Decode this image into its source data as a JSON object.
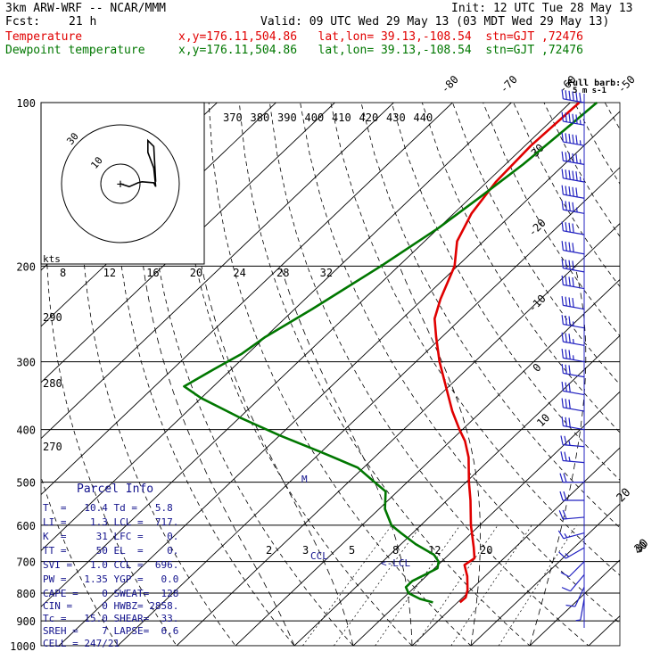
{
  "header": {
    "model": "3km ARW-WRF -- NCAR/MMM",
    "init": "Init: 12 UTC Tue 28 May 13",
    "fcst_label": "Fcst:",
    "fcst_hours": "21 h",
    "valid": "Valid: 09 UTC Wed 29 May 13 (03 MDT Wed 29 May 13)",
    "temp_label": "Temperature",
    "dewp_label": "Dewpoint temperature",
    "temp_loc": "x,y=176.11,504.86   lat,lon= 39.13,-108.54  stn=GJT ,72476",
    "dewp_loc": "x,y=176.11,504.86   lat,lon= 39.13,-108.54  stn=GJT ,72476"
  },
  "colors": {
    "temperature": "#e00000",
    "dewpoint": "#007700",
    "header_red": "#e00000",
    "header_green": "#007700",
    "params": "#12128c",
    "barb": "#2020c0"
  },
  "barb_legend": {
    "line1": "Full barb:",
    "line2": "5 m s-1"
  },
  "hodograph": {
    "units": "kts",
    "ring_labels": [
      "10",
      "30"
    ],
    "bottom_ticks": [
      "8",
      "12",
      "16",
      "20",
      "24",
      "28",
      "32"
    ],
    "points": [
      [
        0.0,
        0.0
      ],
      [
        4.5,
        -1.5
      ],
      [
        9,
        0.5
      ],
      [
        11,
        1
      ],
      [
        17,
        0.5
      ],
      [
        18,
        -1.5
      ],
      [
        17,
        8
      ],
      [
        14,
        16
      ],
      [
        14,
        22
      ],
      [
        17,
        19
      ],
      [
        18,
        1
      ]
    ]
  },
  "theta_e_labels": [
    "370",
    "380",
    "390",
    "400",
    "410",
    "420",
    "430",
    "440"
  ],
  "theta_side_labels": [
    "290",
    "280",
    "270"
  ],
  "mixing_ratio_labels": [
    "2",
    "3",
    "5",
    "8",
    "12",
    "20"
  ],
  "level_marks": {
    "ccl": "CCL",
    "lcl": "<-LCL",
    "m": "M"
  },
  "parcel_info": {
    "title": "Parcel Info",
    "rows": [
      "T  =   10.4 Td =   5.8",
      "LI =    1.3 LCL =  717.",
      "K  =     31 LFC =    0.",
      "TT =     50 EL  =    0.",
      "SVI =   1.0 CCL =  696.",
      "PW =   1.35 YGP =   0.0",
      "CAPE =    0 SWEAT=  128",
      "CIN =     0 HWBZ= 2858.",
      "Tc =   15.0 SHEAR=  33.",
      "SREH =    7 LAPSE=  6.6",
      "CELL = 247/21"
    ]
  },
  "chart_data": {
    "type": "line",
    "title": "",
    "xlabel": "",
    "ylabel": "",
    "pressure_axis_labels": [
      "100",
      "200",
      "300",
      "400",
      "500",
      "600",
      "700",
      "800",
      "900",
      "1000"
    ],
    "pressure_levels": [
      100,
      200,
      300,
      400,
      500,
      600,
      700,
      800,
      900,
      1000
    ],
    "isotherm_labels": [
      "-80",
      "-70",
      "-60",
      "-50",
      "-40",
      "-30",
      "-20",
      "-10",
      "0",
      "10",
      "20",
      "30",
      "40"
    ],
    "isotherm_values": [
      -80,
      -70,
      -60,
      -50,
      -40,
      -30,
      -20,
      -10,
      0,
      10,
      20,
      30,
      40
    ],
    "ylim": [
      1000,
      100
    ],
    "series": [
      {
        "name": "Temperature",
        "pressure": [
          832,
          815,
          790,
          745,
          710,
          690,
          660,
          600,
          540,
          500,
          450,
          420,
          400,
          370,
          330,
          300,
          270,
          250,
          230,
          200,
          180,
          160,
          140,
          120,
          100
        ],
        "values": [
          10.4,
          10.5,
          9.5,
          7.0,
          4.5,
          5.0,
          3.0,
          -1.5,
          -6.0,
          -9.5,
          -14.0,
          -17.5,
          -20.5,
          -25.0,
          -31.0,
          -36.0,
          -41.0,
          -44.5,
          -47.0,
          -50.5,
          -54.5,
          -57.0,
          -58.5,
          -59.0,
          -58.5
        ]
      },
      {
        "name": "Dewpoint temperature",
        "pressure": [
          832,
          820,
          800,
          780,
          760,
          740,
          720,
          700,
          680,
          650,
          620,
          600,
          560,
          520,
          500,
          470,
          440,
          410,
          380,
          350,
          333,
          310,
          290,
          270,
          240,
          200,
          170,
          150,
          130,
          110,
          100
        ],
        "values": [
          5.8,
          3.0,
          0.0,
          -1.5,
          -1.5,
          -0.5,
          0.5,
          -0.5,
          -2.5,
          -7.5,
          -12.0,
          -15.0,
          -19.0,
          -22.0,
          -25.5,
          -31.0,
          -40.0,
          -50.0,
          -60.0,
          -70.0,
          -75.0,
          -73.0,
          -71.0,
          -70.0,
          -67.0,
          -63.0,
          -60.0,
          -58.5,
          -57.0,
          -56.0,
          -55.5
        ]
      }
    ],
    "wind_barbs": [
      {
        "p": 100,
        "dir": 280,
        "spd": 60
      },
      {
        "p": 110,
        "dir": 280,
        "spd": 55
      },
      {
        "p": 120,
        "dir": 280,
        "spd": 55
      },
      {
        "p": 130,
        "dir": 280,
        "spd": 55
      },
      {
        "p": 140,
        "dir": 280,
        "spd": 55
      },
      {
        "p": 150,
        "dir": 280,
        "spd": 50
      },
      {
        "p": 160,
        "dir": 280,
        "spd": 45
      },
      {
        "p": 175,
        "dir": 280,
        "spd": 40
      },
      {
        "p": 190,
        "dir": 280,
        "spd": 40
      },
      {
        "p": 205,
        "dir": 280,
        "spd": 40
      },
      {
        "p": 220,
        "dir": 280,
        "spd": 40
      },
      {
        "p": 240,
        "dir": 280,
        "spd": 40
      },
      {
        "p": 260,
        "dir": 280,
        "spd": 35
      },
      {
        "p": 280,
        "dir": 280,
        "spd": 35
      },
      {
        "p": 300,
        "dir": 280,
        "spd": 35
      },
      {
        "p": 320,
        "dir": 280,
        "spd": 30
      },
      {
        "p": 345,
        "dir": 280,
        "spd": 30
      },
      {
        "p": 370,
        "dir": 280,
        "spd": 30
      },
      {
        "p": 400,
        "dir": 280,
        "spd": 30
      },
      {
        "p": 430,
        "dir": 275,
        "spd": 25
      },
      {
        "p": 460,
        "dir": 275,
        "spd": 25
      },
      {
        "p": 500,
        "dir": 270,
        "spd": 20
      },
      {
        "p": 540,
        "dir": 270,
        "spd": 20
      },
      {
        "p": 580,
        "dir": 265,
        "spd": 20
      },
      {
        "p": 620,
        "dir": 255,
        "spd": 15
      },
      {
        "p": 660,
        "dir": 240,
        "spd": 15
      },
      {
        "p": 700,
        "dir": 225,
        "spd": 10
      },
      {
        "p": 740,
        "dir": 220,
        "spd": 10
      },
      {
        "p": 780,
        "dir": 205,
        "spd": 10
      },
      {
        "p": 820,
        "dir": 190,
        "spd": 5
      }
    ]
  }
}
